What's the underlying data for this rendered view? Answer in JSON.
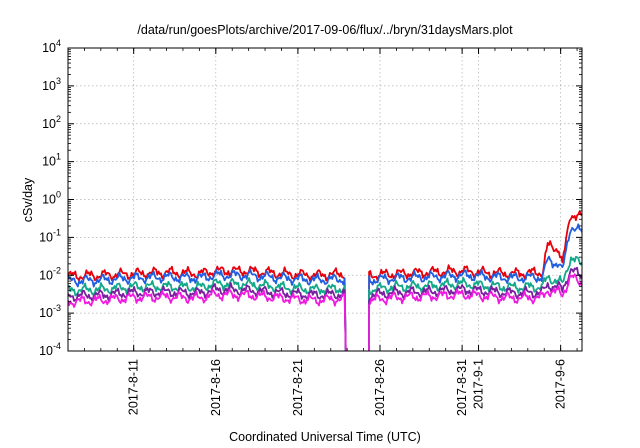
{
  "chart_data": {
    "type": "line",
    "title": "/data/run/goesPlots/archive/2017-09-06/flux/../bryn/31daysMars.plot",
    "xlabel": "Coordinated Universal Time (UTC)",
    "ylabel": "cSv/day",
    "y_scale": "log",
    "ylim": [
      0.0001,
      10000
    ],
    "y_ticks": [
      {
        "value": 0.0001,
        "base": "10",
        "exp": "-4"
      },
      {
        "value": 0.001,
        "base": "10",
        "exp": "-3"
      },
      {
        "value": 0.01,
        "base": "10",
        "exp": "-2"
      },
      {
        "value": 0.1,
        "base": "10",
        "exp": "-1"
      },
      {
        "value": 1,
        "base": "10",
        "exp": "0"
      },
      {
        "value": 10,
        "base": "10",
        "exp": "1"
      },
      {
        "value": 100,
        "base": "10",
        "exp": "2"
      },
      {
        "value": 1000,
        "base": "10",
        "exp": "3"
      },
      {
        "value": 10000,
        "base": "10",
        "exp": "4"
      }
    ],
    "xlim": [
      "2017-08-07",
      "2017-09-07.3"
    ],
    "x_ticks": [
      {
        "date": "2017-08-11",
        "label": "2017-8-11"
      },
      {
        "date": "2017-08-16",
        "label": "2017-8-16"
      },
      {
        "date": "2017-08-21",
        "label": "2017-8-21"
      },
      {
        "date": "2017-08-26",
        "label": "2017-8-26"
      },
      {
        "date": "2017-08-31",
        "label": "2017-8-31"
      },
      {
        "date": "2017-09-01",
        "label": "2017-9-1"
      },
      {
        "date": "2017-09-06",
        "label": "2017-9-6"
      }
    ],
    "grid": true,
    "data_gap": [
      "2017-08-23.9",
      "2017-08-25.3"
    ],
    "series": [
      {
        "color": "#e8000b",
        "x": [
          "2017-08-07",
          "2017-08-09",
          "2017-08-11",
          "2017-08-13",
          "2017-08-15",
          "2017-08-16",
          "2017-08-18",
          "2017-08-20",
          "2017-08-22",
          "2017-08-23.8",
          "2017-08-25.4",
          "2017-08-27",
          "2017-08-29",
          "2017-08-31",
          "2017-09-01",
          "2017-09-03",
          "2017-09-04.9",
          "2017-09-05.2",
          "2017-09-05.9",
          "2017-09-06.1",
          "2017-09-06.6",
          "2017-09-07.2"
        ],
        "y": [
          0.0095,
          0.01,
          0.011,
          0.012,
          0.011,
          0.013,
          0.013,
          0.011,
          0.01,
          0.011,
          0.01,
          0.011,
          0.012,
          0.013,
          0.012,
          0.011,
          0.012,
          0.06,
          0.05,
          0.018,
          0.42,
          0.35
        ]
      },
      {
        "color": "#1f5fe0",
        "x": [
          "2017-08-07",
          "2017-08-09",
          "2017-08-11",
          "2017-08-13",
          "2017-08-15",
          "2017-08-16",
          "2017-08-18",
          "2017-08-20",
          "2017-08-22",
          "2017-08-23.8",
          "2017-08-25.4",
          "2017-08-27",
          "2017-08-29",
          "2017-08-31",
          "2017-09-01",
          "2017-09-03",
          "2017-09-04.9",
          "2017-09-05.2",
          "2017-09-05.9",
          "2017-09-06.1",
          "2017-09-06.6",
          "2017-09-07.2"
        ],
        "y": [
          0.007,
          0.0075,
          0.0085,
          0.009,
          0.0085,
          0.01,
          0.01,
          0.0085,
          0.0075,
          0.008,
          0.0075,
          0.0085,
          0.009,
          0.01,
          0.0095,
          0.0085,
          0.009,
          0.025,
          0.02,
          0.012,
          0.2,
          0.14
        ]
      },
      {
        "color": "#14a88a",
        "x": [
          "2017-08-07",
          "2017-08-09",
          "2017-08-11",
          "2017-08-13",
          "2017-08-15",
          "2017-08-16",
          "2017-08-18",
          "2017-08-20",
          "2017-08-22",
          "2017-08-23.8",
          "2017-08-25.4",
          "2017-08-27",
          "2017-08-29",
          "2017-08-31",
          "2017-09-01",
          "2017-09-03",
          "2017-09-04.9",
          "2017-09-05.2",
          "2017-09-05.9",
          "2017-09-06.1",
          "2017-09-06.6",
          "2017-09-07.2"
        ],
        "y": [
          0.004,
          0.0042,
          0.005,
          0.005,
          0.0048,
          0.006,
          0.0058,
          0.0048,
          0.0042,
          0.0045,
          0.0042,
          0.005,
          0.0052,
          0.006,
          0.0055,
          0.0048,
          0.005,
          0.0085,
          0.007,
          0.0055,
          0.03,
          0.02
        ]
      },
      {
        "color": "#7a1fa0",
        "x": [
          "2017-08-07",
          "2017-08-09",
          "2017-08-11",
          "2017-08-13",
          "2017-08-15",
          "2017-08-16",
          "2017-08-18",
          "2017-08-20",
          "2017-08-22",
          "2017-08-23.8",
          "2017-08-25.4",
          "2017-08-27",
          "2017-08-29",
          "2017-08-31",
          "2017-09-01",
          "2017-09-03",
          "2017-09-04.9",
          "2017-09-05.2",
          "2017-09-05.9",
          "2017-09-06.1",
          "2017-09-06.6",
          "2017-09-07.2"
        ],
        "y": [
          0.0028,
          0.003,
          0.0035,
          0.0036,
          0.0034,
          0.0042,
          0.004,
          0.0034,
          0.003,
          0.0032,
          0.003,
          0.0035,
          0.0037,
          0.0042,
          0.0039,
          0.0034,
          0.0035,
          0.0055,
          0.0048,
          0.004,
          0.014,
          0.01
        ]
      },
      {
        "color": "#f01ae0",
        "x": [
          "2017-08-07",
          "2017-08-09",
          "2017-08-11",
          "2017-08-13",
          "2017-08-15",
          "2017-08-16",
          "2017-08-18",
          "2017-08-20",
          "2017-08-22",
          "2017-08-23.8",
          "2017-08-25.4",
          "2017-08-27",
          "2017-08-29",
          "2017-08-31",
          "2017-09-01",
          "2017-09-03",
          "2017-09-04.9",
          "2017-09-05.2",
          "2017-09-05.9",
          "2017-09-06.1",
          "2017-09-06.6",
          "2017-09-07.2"
        ],
        "y": [
          0.002,
          0.0022,
          0.0026,
          0.0027,
          0.0025,
          0.0031,
          0.003,
          0.0025,
          0.0022,
          0.0024,
          0.0022,
          0.0026,
          0.0028,
          0.0031,
          0.0029,
          0.0025,
          0.0026,
          0.004,
          0.0035,
          0.003,
          0.009,
          0.0065
        ]
      }
    ]
  }
}
